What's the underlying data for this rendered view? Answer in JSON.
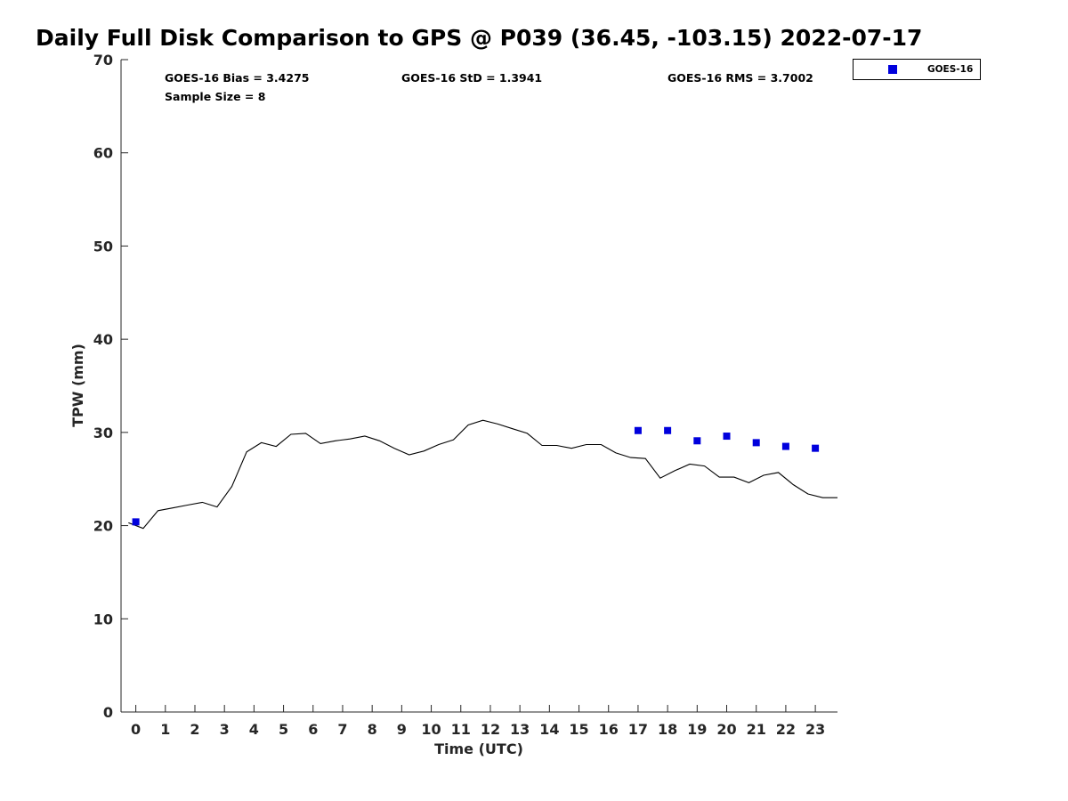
{
  "chart_data": {
    "type": "line",
    "title": "Daily Full Disk Comparison to GPS @ P039 (36.45, -103.15) 2022-07-17",
    "xlabel": "Time (UTC)",
    "ylabel": "TPW (mm)",
    "xlim": [
      -0.5,
      23.75
    ],
    "ylim": [
      0,
      70
    ],
    "xticks": [
      "0",
      "1",
      "2",
      "3",
      "4",
      "5",
      "6",
      "7",
      "8",
      "9",
      "10",
      "11",
      "12",
      "13",
      "14",
      "15",
      "16",
      "17",
      "18",
      "19",
      "20",
      "21",
      "22",
      "23"
    ],
    "yticks": [
      "0",
      "10",
      "20",
      "30",
      "40",
      "50",
      "60",
      "70"
    ],
    "grid": false,
    "legend_position": "outside-top-right",
    "stats": {
      "bias": "GOES-16 Bias = 3.4275",
      "std": "GOES-16 StD = 1.3941",
      "rms": "GOES-16 RMS = 3.7002",
      "sample": "Sample Size = 8"
    },
    "series": [
      {
        "type": "line",
        "color": "#000000",
        "x": [
          -0.25,
          0.25,
          0.75,
          1.25,
          1.75,
          2.25,
          2.75,
          3.25,
          3.75,
          4.25,
          4.75,
          5.25,
          5.75,
          6.25,
          6.75,
          7.25,
          7.75,
          8.25,
          8.75,
          9.25,
          9.75,
          10.25,
          10.75,
          11.25,
          11.75,
          12.25,
          12.75,
          13.25,
          13.75,
          14.25,
          14.75,
          15.25,
          15.75,
          16.25,
          16.75,
          17.25,
          17.75,
          18.25,
          18.75,
          19.25,
          19.75,
          20.25,
          20.75,
          21.25,
          21.75,
          22.25,
          22.75,
          23.25,
          23.75
        ],
        "y": [
          20.3,
          19.7,
          21.6,
          21.9,
          22.2,
          22.5,
          22.0,
          24.2,
          27.9,
          28.9,
          28.5,
          29.8,
          29.9,
          28.8,
          29.1,
          29.3,
          29.6,
          29.1,
          28.3,
          27.6,
          28.0,
          28.7,
          29.2,
          30.8,
          31.3,
          30.9,
          30.4,
          29.9,
          28.6,
          28.6,
          28.3,
          28.7,
          28.7,
          27.8,
          27.3,
          27.2,
          25.1,
          25.9,
          26.6,
          26.4,
          25.2,
          25.2,
          24.6,
          25.4,
          25.7,
          24.4,
          23.4,
          23.0,
          23.0
        ]
      },
      {
        "name": "GOES-16",
        "type": "scatter",
        "color": "#0000dd",
        "x": [
          0,
          17,
          18,
          19,
          20,
          21,
          22,
          23
        ],
        "y": [
          20.4,
          30.2,
          30.2,
          29.1,
          29.6,
          28.9,
          28.5,
          28.3
        ]
      }
    ]
  }
}
